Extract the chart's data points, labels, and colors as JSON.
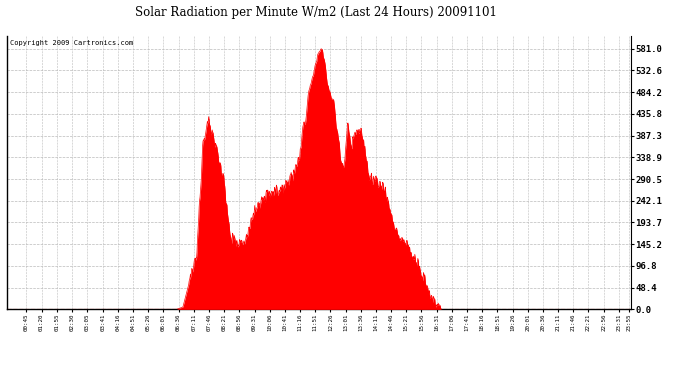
{
  "title": "Solar Radiation per Minute W/m2 (Last 24 Hours) 20091101",
  "copyright": "Copyright 2009 Cartronics.com",
  "fill_color": "#FF0000",
  "line_color": "#FF0000",
  "background_color": "#FFFFFF",
  "grid_color": "#AAAAAA",
  "ytick_labels": [
    "0.0",
    "48.4",
    "96.8",
    "145.2",
    "193.7",
    "242.1",
    "290.5",
    "338.9",
    "387.3",
    "435.8",
    "484.2",
    "532.6",
    "581.0"
  ],
  "ytick_values": [
    0.0,
    48.4,
    96.8,
    145.2,
    193.7,
    242.1,
    290.5,
    338.9,
    387.3,
    435.8,
    484.2,
    532.6,
    581.0
  ],
  "ymax": 610,
  "xtick_labels": [
    "00:45",
    "01:20",
    "01:55",
    "02:30",
    "03:05",
    "03:41",
    "04:16",
    "04:51",
    "05:26",
    "06:01",
    "06:36",
    "07:11",
    "07:46",
    "08:21",
    "08:56",
    "09:31",
    "10:06",
    "10:41",
    "11:16",
    "11:51",
    "12:26",
    "13:01",
    "13:36",
    "14:11",
    "14:46",
    "15:21",
    "15:56",
    "16:31",
    "17:06",
    "17:41",
    "18:16",
    "18:51",
    "19:26",
    "20:01",
    "20:36",
    "21:11",
    "21:46",
    "22:21",
    "22:56",
    "23:31",
    "23:55"
  ]
}
